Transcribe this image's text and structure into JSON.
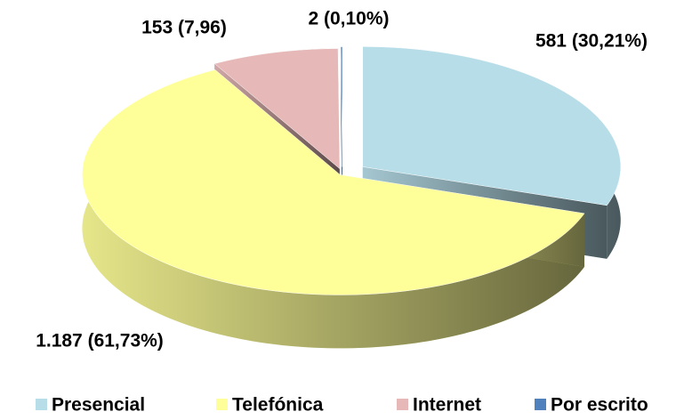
{
  "chart_data": {
    "type": "pie",
    "categories": [
      "Presencial",
      "Telefónica",
      "Internet",
      "Por escrito"
    ],
    "values": [
      581,
      1187,
      153,
      2
    ],
    "value_labels": [
      "581 (30,21%)",
      "1.187 (61,73%)",
      "153 (7,96)",
      "2 (0,10%)"
    ],
    "colors": [
      "#b7dde8",
      "#ffff99",
      "#e6b9b8",
      "#4f81bd"
    ],
    "legend": "bottom"
  }
}
